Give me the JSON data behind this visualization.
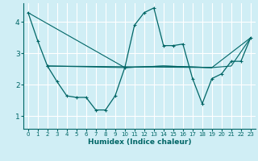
{
  "title": "",
  "xlabel": "Humidex (Indice chaleur)",
  "ylabel": "",
  "background_color": "#d0eef5",
  "grid_color": "#ffffff",
  "line_color": "#006666",
  "xlim": [
    -0.5,
    23.5
  ],
  "ylim": [
    0.6,
    4.6
  ],
  "yticks": [
    1,
    2,
    3,
    4
  ],
  "xticks": [
    0,
    1,
    2,
    3,
    4,
    5,
    6,
    7,
    8,
    9,
    10,
    11,
    12,
    13,
    14,
    15,
    16,
    17,
    18,
    19,
    20,
    21,
    22,
    23
  ],
  "lines": [
    {
      "x": [
        0,
        1,
        2
      ],
      "y": [
        4.3,
        3.4,
        2.6
      ],
      "marker": true
    },
    {
      "x": [
        2,
        3,
        4,
        5,
        6,
        7,
        8,
        9,
        10,
        11,
        12,
        13,
        14,
        15,
        16,
        17,
        18,
        19,
        20,
        21,
        22,
        23
      ],
      "y": [
        2.6,
        2.1,
        1.65,
        1.6,
        1.6,
        1.2,
        1.2,
        1.65,
        2.55,
        3.9,
        4.3,
        4.45,
        3.25,
        3.25,
        3.3,
        2.2,
        1.4,
        2.2,
        2.35,
        2.75,
        2.75,
        3.5
      ],
      "marker": true
    },
    {
      "x": [
        2,
        10,
        14,
        19,
        21,
        23
      ],
      "y": [
        2.6,
        2.55,
        2.6,
        2.55,
        2.6,
        3.5
      ],
      "marker": false
    },
    {
      "x": [
        0,
        10,
        14,
        19,
        23
      ],
      "y": [
        4.3,
        2.55,
        2.6,
        2.55,
        3.5
      ],
      "marker": false
    },
    {
      "x": [
        2,
        19
      ],
      "y": [
        2.6,
        2.55
      ],
      "marker": false
    }
  ]
}
